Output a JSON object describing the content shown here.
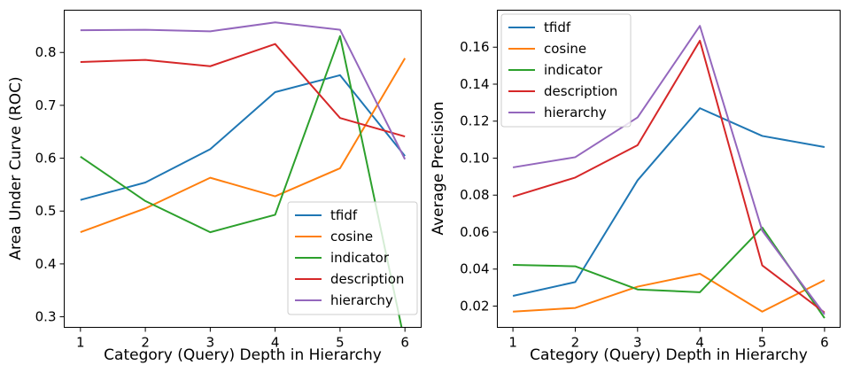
{
  "chart_data": [
    {
      "type": "line",
      "xlabel": "Category (Query) Depth in Hierarchy",
      "ylabel": "Area Under Curve (ROC)",
      "x": [
        1,
        2,
        3,
        4,
        5,
        6
      ],
      "xlim": [
        0.75,
        6.25
      ],
      "ylim": [
        0.28,
        0.88
      ],
      "xticks": [
        1,
        2,
        3,
        4,
        5,
        6
      ],
      "yticks": [
        0.3,
        0.4,
        0.5,
        0.6,
        0.7,
        0.8
      ],
      "ytick_labels": [
        "0.3",
        "0.4",
        "0.5",
        "0.6",
        "0.7",
        "0.8"
      ],
      "legend": "lower-right",
      "grid": false,
      "series": [
        {
          "name": "tfidf",
          "color": "#1f77b4",
          "values": [
            0.521,
            0.554,
            0.617,
            0.725,
            0.757,
            0.604
          ]
        },
        {
          "name": "cosine",
          "color": "#ff7f0e",
          "values": [
            0.46,
            0.505,
            0.563,
            0.528,
            0.581,
            0.789
          ]
        },
        {
          "name": "indicator",
          "color": "#2ca02c",
          "values": [
            0.603,
            0.519,
            0.46,
            0.493,
            0.831,
            0.25
          ]
        },
        {
          "name": "description",
          "color": "#d62728",
          "values": [
            0.782,
            0.786,
            0.774,
            0.816,
            0.676,
            0.641
          ]
        },
        {
          "name": "hierarchy",
          "color": "#9467bd",
          "values": [
            0.842,
            0.843,
            0.84,
            0.857,
            0.843,
            0.598
          ]
        }
      ]
    },
    {
      "type": "line",
      "xlabel": "Category (Query) Depth in Hierarchy",
      "ylabel": "Average Precision",
      "x": [
        1,
        2,
        3,
        4,
        5,
        6
      ],
      "xlim": [
        0.75,
        6.25
      ],
      "ylim": [
        0.0085,
        0.18
      ],
      "xticks": [
        1,
        2,
        3,
        4,
        5,
        6
      ],
      "yticks": [
        0.02,
        0.04,
        0.06,
        0.08,
        0.1,
        0.12,
        0.14,
        0.16
      ],
      "ytick_labels": [
        "0.02",
        "0.04",
        "0.06",
        "0.08",
        "0.10",
        "0.12",
        "0.14",
        "0.16"
      ],
      "legend": "upper-left",
      "grid": false,
      "series": [
        {
          "name": "tfidf",
          "color": "#1f77b4",
          "values": [
            0.0255,
            0.033,
            0.088,
            0.127,
            0.112,
            0.106
          ]
        },
        {
          "name": "cosine",
          "color": "#ff7f0e",
          "values": [
            0.017,
            0.019,
            0.0305,
            0.0375,
            0.017,
            0.034
          ]
        },
        {
          "name": "indicator",
          "color": "#2ca02c",
          "values": [
            0.0423,
            0.0415,
            0.029,
            0.0275,
            0.0625,
            0.0135
          ]
        },
        {
          "name": "description",
          "color": "#d62728",
          "values": [
            0.0792,
            0.0895,
            0.107,
            0.1635,
            0.042,
            0.0165
          ]
        },
        {
          "name": "hierarchy",
          "color": "#9467bd",
          "values": [
            0.095,
            0.1005,
            0.122,
            0.1715,
            0.0608,
            0.0155
          ]
        }
      ]
    }
  ]
}
